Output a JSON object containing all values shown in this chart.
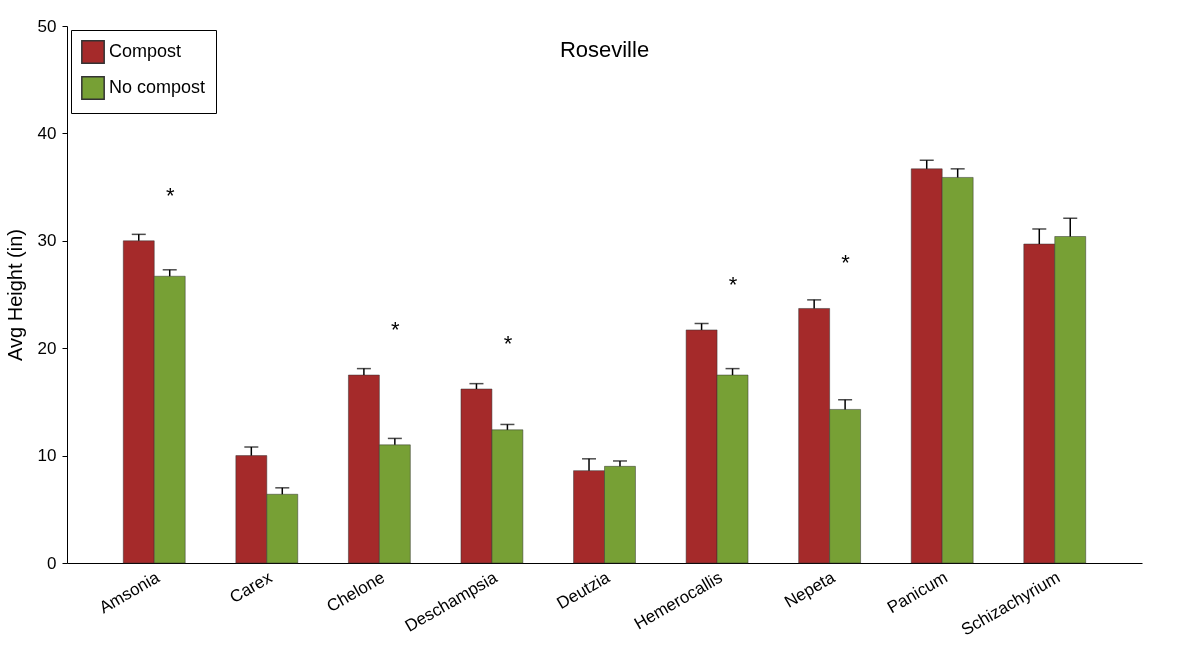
{
  "chart_data": {
    "type": "bar",
    "title": "Roseville",
    "ylabel": "Avg Height (in)",
    "categories": [
      "Amsonia",
      "Carex",
      "Chelone",
      "Deschampsia",
      "Deutzia",
      "Hemerocallis",
      "Nepeta",
      "Panicum",
      "Schizachyrium"
    ],
    "series": [
      {
        "name": "Compost",
        "color": "#a52a2a",
        "values": [
          30.0,
          10.0,
          17.5,
          16.2,
          8.6,
          21.7,
          23.7,
          36.7,
          29.7
        ],
        "errors": [
          [
            30.0,
            30.6
          ],
          [
            10.0,
            10.8
          ],
          [
            17.5,
            18.1
          ],
          [
            16.2,
            16.7
          ],
          [
            8.6,
            9.7
          ],
          [
            21.7,
            22.3
          ],
          [
            23.7,
            24.5
          ],
          [
            36.7,
            37.5
          ],
          [
            29.7,
            31.1
          ]
        ]
      },
      {
        "name": "No compost",
        "color": "#77a035",
        "values": [
          26.7,
          6.4,
          11.0,
          12.4,
          9.0,
          17.5,
          14.3,
          35.9,
          30.4
        ],
        "errors": [
          [
            26.7,
            27.3
          ],
          [
            6.4,
            7.0
          ],
          [
            11.0,
            11.6
          ],
          [
            12.4,
            12.9
          ],
          [
            9.0,
            9.5
          ],
          [
            17.5,
            18.1
          ],
          [
            14.3,
            15.2
          ],
          [
            35.9,
            36.7
          ],
          [
            30.4,
            32.1
          ]
        ]
      }
    ],
    "ylim": [
      0,
      50
    ],
    "yticks": [
      0,
      10,
      20,
      30,
      40,
      50
    ],
    "grid": false,
    "legend": "top left",
    "annotations": [
      {
        "text": "*",
        "x": "Amsonia",
        "y": 30.0
      },
      {
        "text": "*",
        "x": "Chelone",
        "y": 17.5
      },
      {
        "text": "*",
        "x": "Deschampsia",
        "y": 16.2
      },
      {
        "text": "*",
        "x": "Hemerocallis",
        "y": 21.7
      },
      {
        "text": "*",
        "x": "Nepeta",
        "y": 23.7
      }
    ]
  }
}
